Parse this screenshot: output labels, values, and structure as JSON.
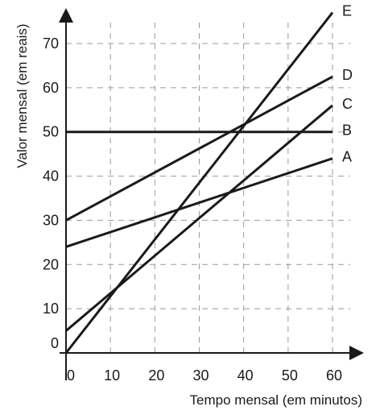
{
  "chart_data": {
    "type": "line",
    "title": "",
    "xlabel": "Tempo mensal (em minutos)",
    "ylabel": "Valor mensal (em reais)",
    "xlim": [
      0,
      60
    ],
    "ylim": [
      0,
      70
    ],
    "x_ticks": [
      0,
      10,
      20,
      30,
      40,
      50,
      60
    ],
    "y_ticks": [
      0,
      10,
      20,
      30,
      40,
      50,
      60,
      70
    ],
    "grid": true,
    "grid_style": "dashed",
    "legend": "labels at line ends (right)",
    "series": [
      {
        "name": "A",
        "x": [
          0,
          60
        ],
        "y": [
          24,
          44
        ]
      },
      {
        "name": "B",
        "x": [
          0,
          60
        ],
        "y": [
          50,
          50
        ]
      },
      {
        "name": "C",
        "x": [
          0,
          60
        ],
        "y": [
          5,
          56
        ]
      },
      {
        "name": "D",
        "x": [
          0,
          60
        ],
        "y": [
          30,
          62.5
        ]
      },
      {
        "name": "E",
        "x": [
          0,
          60
        ],
        "y": [
          0,
          77
        ]
      }
    ],
    "colors": {
      "line": "#1a1a1a",
      "grid": "#9a9a9a",
      "text": "#1a1a1a"
    }
  }
}
